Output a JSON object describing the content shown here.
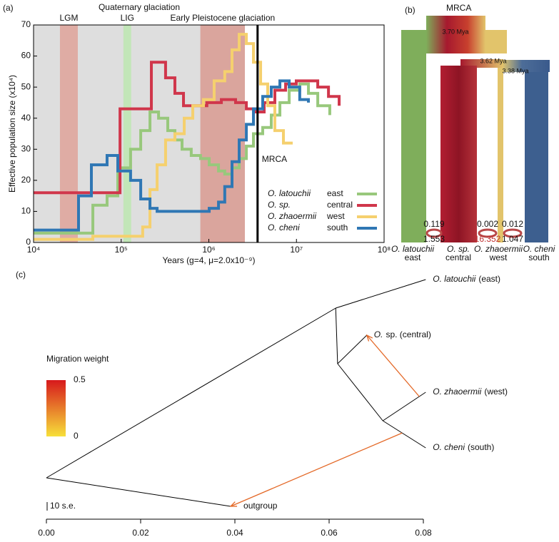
{
  "chart_data": [
    {
      "type": "line",
      "panel": "(a)",
      "x_label": "Years (g=4, μ=2.0x10⁻⁹)",
      "y_label": "Effective population size (x10⁴)",
      "xscale": "log",
      "xlim": [
        10000,
        100000000
      ],
      "xticks": [
        {
          "value": 10000,
          "label": "10⁴"
        },
        {
          "value": 100000,
          "label": "10⁵"
        },
        {
          "value": 1000000,
          "label": "10⁶"
        },
        {
          "value": 10000000,
          "label": "10⁷"
        },
        {
          "value": 100000000,
          "label": "10⁸"
        }
      ],
      "ylim": [
        0,
        70
      ],
      "yticks": [
        0,
        10,
        20,
        30,
        40,
        50,
        60,
        70
      ],
      "periods": [
        {
          "label": "Quaternary glaciation",
          "range": [
            10000,
            2580000
          ],
          "color": "#dedede"
        },
        {
          "label": "LGM",
          "range": [
            20000,
            32000
          ],
          "color": "#dfaca4"
        },
        {
          "label": "LIG",
          "range": [
            106000,
            130000
          ],
          "color": "#c2e6b8"
        },
        {
          "label": "Early Pleistocene glaciation",
          "range": [
            800000,
            2580000
          ],
          "color": "#daa59d"
        }
      ],
      "mrca": {
        "label": "MRCA",
        "x": 3600000
      },
      "series": [
        {
          "name": "O. latouchii",
          "region": "east",
          "color": "#98c87c",
          "x": [
            10000,
            47500,
            69000,
            91500,
            128000,
            167000,
            213000,
            267000,
            340000,
            410000,
            495000,
            630000,
            805000,
            1010000,
            1290000,
            1520000,
            1840000,
            2220000,
            2680000,
            3230000,
            4120000,
            5160000,
            6470000,
            8260000,
            10900000,
            13700000,
            17500000,
            24000000
          ],
          "values": [
            3,
            12,
            15,
            24,
            30,
            36,
            42,
            40,
            36,
            33,
            30,
            28,
            27,
            25,
            23,
            22,
            24,
            27,
            31,
            35,
            37,
            41,
            45,
            49,
            51,
            48,
            44,
            41
          ]
        },
        {
          "name": "O. sp.",
          "region": "central",
          "color": "#d0364b",
          "x": [
            10000,
            97000,
            221000,
            321000,
            410000,
            514000,
            656000,
            950000,
            1390000,
            2020000,
            2680000,
            3420000,
            4280000,
            5670000,
            7520000,
            9950000,
            13200000,
            17500000,
            23200000,
            30700000
          ],
          "values": [
            16,
            43,
            58,
            53,
            48,
            44,
            44,
            45,
            46,
            45,
            43,
            42,
            45,
            49,
            51,
            52,
            52,
            50,
            47,
            44
          ]
        },
        {
          "name": "O. zhaoermii",
          "region": "west",
          "color": "#f5d06e",
          "x": [
            10000,
            47500,
            176000,
            213000,
            257000,
            321000,
            410000,
            524000,
            656000,
            869000,
            1150000,
            1520000,
            1840000,
            2220000,
            2680000,
            3230000,
            3900000,
            4700000,
            5670000,
            7100000,
            9060000
          ],
          "values": [
            1,
            2,
            5,
            17,
            25,
            33,
            35,
            40,
            44,
            46,
            52,
            55,
            62,
            67,
            64,
            58,
            51,
            44,
            36,
            32,
            32
          ]
        },
        {
          "name": "O. cheni",
          "region": "south",
          "color": "#2f77b4",
          "x": [
            10000,
            32600,
            45700,
            69000,
            91500,
            128000,
            167000,
            213000,
            257000,
            805000,
            1010000,
            1290000,
            1520000,
            1840000,
            2220000,
            2680000,
            3230000,
            4120000,
            5160000,
            6470000,
            8260000,
            10900000,
            13700000
          ],
          "values": [
            4,
            15,
            25,
            28,
            23,
            20,
            14,
            11,
            10,
            10,
            11,
            13,
            18,
            26,
            33,
            38,
            43,
            47,
            50,
            52,
            50,
            46,
            45
          ]
        }
      ]
    },
    {
      "type": "tree",
      "panel": "(c)",
      "xlim": [
        0,
        0.08
      ],
      "xticks": [
        {
          "value": 0,
          "label": "0.00"
        },
        0.02,
        0.04,
        0.06,
        0.08
      ],
      "root_x": 0,
      "internal_x": [
        0.0614,
        0.0618,
        0.0714
      ],
      "tips": [
        {
          "name": "O. latouchii",
          "region": "(east)",
          "x": 0.0805
        },
        {
          "name": "O.",
          "region": "sp. (central)",
          "x": 0.068
        },
        {
          "name": "O. zhaoermii",
          "region": "(west)",
          "x": 0.0805
        },
        {
          "name": "O. cheni",
          "region": "(south)",
          "x": 0.0805
        },
        {
          "name": "outgroup",
          "x": 0.0391
        }
      ],
      "migrations": [
        {
          "weight": 0.3
        },
        {
          "weight": 0.3
        }
      ],
      "migration_scale": {
        "title": "Migration weight",
        "lim": [
          0,
          0.5
        ],
        "ticks": [
          0,
          0.5
        ],
        "colors": [
          "#f7e03a",
          "#d7191c"
        ]
      },
      "scale_label": "10 s.e."
    }
  ],
  "diagram": {
    "panel": "(b)",
    "root": "MRCA",
    "splits": [
      "3.70 Mya",
      "3.62 Mya",
      "3.38 Mya"
    ],
    "migrations": [
      {
        "top": "0.119",
        "bottom": "1.553"
      },
      {
        "top": "0.002",
        "bottom": "16.352"
      },
      {
        "top": "0.012",
        "bottom": "1.047"
      }
    ],
    "tips": [
      {
        "name": "O. latouchii",
        "region": "east"
      },
      {
        "name": "O. sp.",
        "region": "central"
      },
      {
        "name": "O. zhaoermii",
        "region": "west"
      },
      {
        "name": "O. cheni",
        "region": "south"
      }
    ]
  }
}
